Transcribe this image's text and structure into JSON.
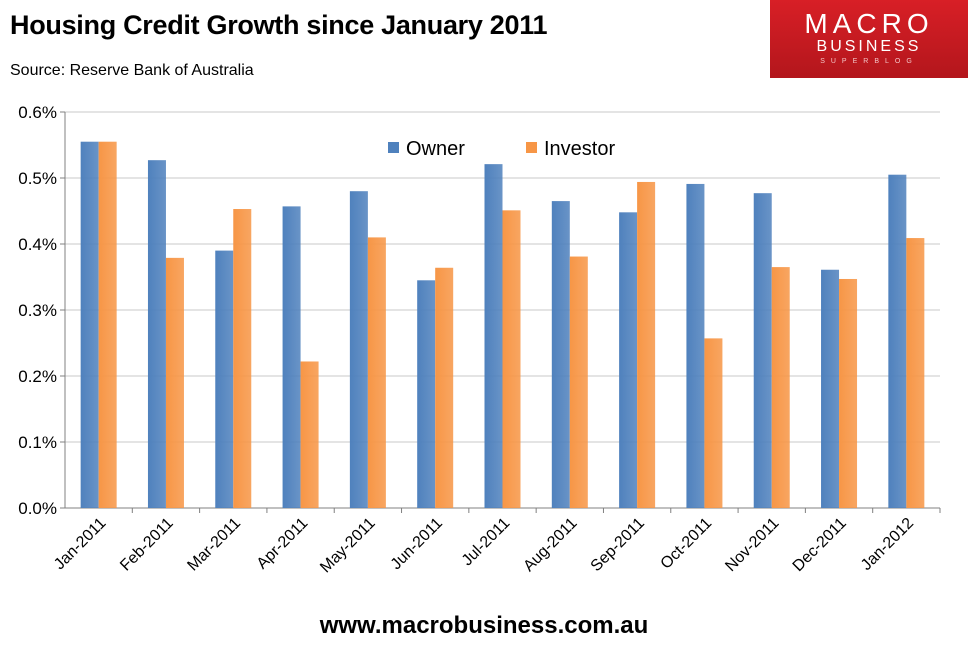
{
  "title": "Housing Credit Growth since January 2011",
  "subtitle": "Source: Reserve Bank of Australia",
  "logo": {
    "line1": "MACRO",
    "line2": "BUSINESS",
    "line3": "SUPERBLOG"
  },
  "footer_url": "www.macrobusiness.com.au",
  "colors": {
    "owner": "#4f81bd",
    "investor": "#f79646",
    "grid": "#c8c8c8",
    "axis": "#808080"
  },
  "chart_data": {
    "type": "bar",
    "categories": [
      "Jan-2011",
      "Feb-2011",
      "Mar-2011",
      "Apr-2011",
      "May-2011",
      "Jun-2011",
      "Jul-2011",
      "Aug-2011",
      "Sep-2011",
      "Oct-2011",
      "Nov-2011",
      "Dec-2011",
      "Jan-2012"
    ],
    "series": [
      {
        "name": "Owner",
        "values": [
          0.555,
          0.527,
          0.39,
          0.457,
          0.48,
          0.345,
          0.521,
          0.465,
          0.448,
          0.491,
          0.477,
          0.361,
          0.505
        ]
      },
      {
        "name": "Investor",
        "values": [
          0.555,
          0.379,
          0.453,
          0.222,
          0.41,
          0.364,
          0.451,
          0.381,
          0.494,
          0.257,
          0.365,
          0.347,
          0.409
        ]
      }
    ],
    "yticks": [
      "0.0%",
      "0.1%",
      "0.2%",
      "0.3%",
      "0.4%",
      "0.5%",
      "0.6%"
    ],
    "ylim": [
      0,
      0.6
    ],
    "legend": "top-center",
    "grid": true
  }
}
